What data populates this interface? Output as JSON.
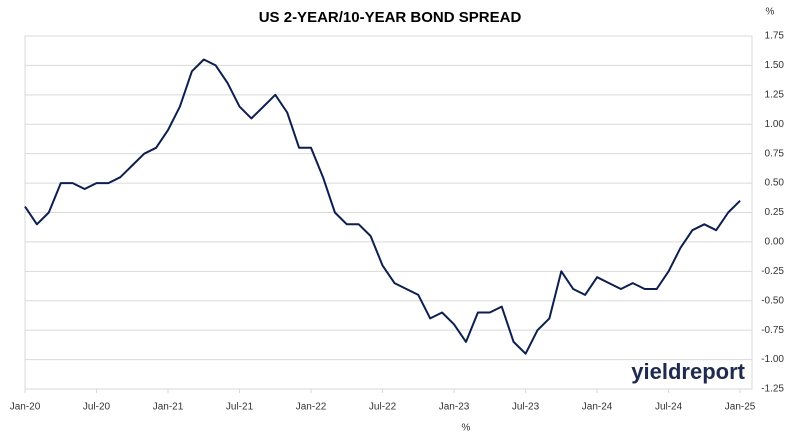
{
  "chart_data": {
    "type": "line",
    "title": "US 2-YEAR/10-YEAR BOND SPREAD",
    "y_unit": "%",
    "x_unit": "%",
    "logo": "yieldreport",
    "x": [
      "2020-01",
      "2020-02",
      "2020-03",
      "2020-04",
      "2020-05",
      "2020-06",
      "2020-07",
      "2020-08",
      "2020-09",
      "2020-10",
      "2020-11",
      "2020-12",
      "2021-01",
      "2021-02",
      "2021-03",
      "2021-04",
      "2021-05",
      "2021-06",
      "2021-07",
      "2021-08",
      "2021-09",
      "2021-10",
      "2021-11",
      "2021-12",
      "2022-01",
      "2022-02",
      "2022-03",
      "2022-04",
      "2022-05",
      "2022-06",
      "2022-07",
      "2022-08",
      "2022-09",
      "2022-10",
      "2022-11",
      "2022-12",
      "2023-01",
      "2023-02",
      "2023-03",
      "2023-04",
      "2023-05",
      "2023-06",
      "2023-07",
      "2023-08",
      "2023-09",
      "2023-10",
      "2023-11",
      "2023-12",
      "2024-01",
      "2024-02",
      "2024-03",
      "2024-04",
      "2024-05",
      "2024-06",
      "2024-07",
      "2024-08",
      "2024-09",
      "2024-10",
      "2024-11",
      "2024-12",
      "2025-01"
    ],
    "series": [
      {
        "name": "US 2-Year/10-Year Spread",
        "color": "#0d1f4f",
        "values": [
          0.3,
          0.15,
          0.25,
          0.5,
          0.5,
          0.45,
          0.5,
          0.5,
          0.55,
          0.65,
          0.75,
          0.8,
          0.95,
          1.15,
          1.45,
          1.55,
          1.5,
          1.35,
          1.15,
          1.05,
          1.15,
          1.25,
          1.1,
          0.8,
          0.8,
          0.55,
          0.25,
          0.15,
          0.15,
          0.05,
          -0.2,
          -0.35,
          -0.4,
          -0.45,
          -0.65,
          -0.6,
          -0.7,
          -0.85,
          -0.6,
          -0.6,
          -0.55,
          -0.85,
          -0.95,
          -0.75,
          -0.65,
          -0.25,
          -0.4,
          -0.45,
          -0.3,
          -0.35,
          -0.4,
          -0.35,
          -0.4,
          -0.4,
          -0.25,
          -0.05,
          0.1,
          0.15,
          0.1,
          0.25,
          0.35
        ]
      }
    ],
    "xlim": [
      "2020-01",
      "2025-02"
    ],
    "xticks": [
      {
        "value": "2020-01",
        "label": "Jan-20"
      },
      {
        "value": "2020-07",
        "label": "Jul-20"
      },
      {
        "value": "2021-01",
        "label": "Jan-21"
      },
      {
        "value": "2021-07",
        "label": "Jul-21"
      },
      {
        "value": "2022-01",
        "label": "Jan-22"
      },
      {
        "value": "2022-07",
        "label": "Jul-22"
      },
      {
        "value": "2023-01",
        "label": "Jan-23"
      },
      {
        "value": "2023-07",
        "label": "Jul-23"
      },
      {
        "value": "2024-01",
        "label": "Jan-24"
      },
      {
        "value": "2024-07",
        "label": "Jul-24"
      },
      {
        "value": "2025-01",
        "label": "Jan-25"
      }
    ],
    "ylim": [
      -1.25,
      1.75
    ],
    "yticks": [
      1.75,
      {
        "value": 1.5,
        "label": "1.50"
      },
      1.25,
      {
        "value": 1,
        "label": "1.00"
      },
      0.75,
      {
        "value": 0.5,
        "label": "0.50"
      },
      0.25,
      {
        "value": 0,
        "label": "0.00"
      },
      -0.25,
      {
        "value": -0.5,
        "label": "-0.50"
      },
      -0.75,
      {
        "value": -1,
        "label": "-1.00"
      },
      -1.25
    ],
    "grid": true
  }
}
